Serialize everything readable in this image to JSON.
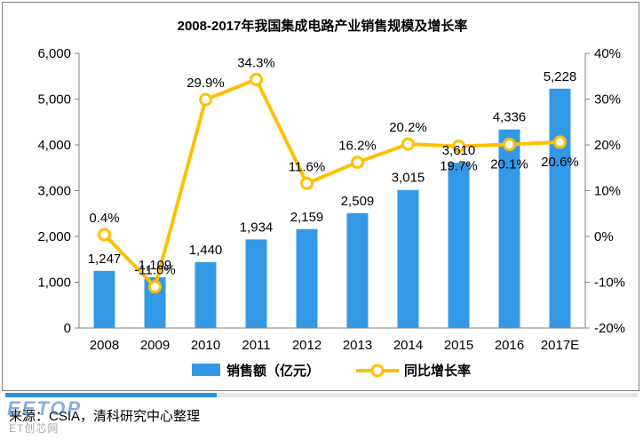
{
  "chart_data": {
    "type": "bar",
    "title": "2008-2017年我国集成电路产业销售规模及增长率",
    "categories": [
      "2008",
      "2009",
      "2010",
      "2011",
      "2012",
      "2013",
      "2014",
      "2015",
      "2016",
      "2017E"
    ],
    "bar_labels": [
      "1,247",
      "1,109",
      "1,440",
      "1,934",
      "2,159",
      "2,509",
      "3,015",
      "3,610",
      "4,336",
      "5,228"
    ],
    "line_labels": [
      "0.4%",
      "-11.0%",
      "29.9%",
      "34.3%",
      "11.6%",
      "16.2%",
      "20.2%",
      "19.7%",
      "20.1%",
      "20.6%"
    ],
    "series": [
      {
        "name": "销售额（亿元）",
        "type": "bar",
        "axis": "left",
        "color": "#3399e6",
        "values": [
          1247,
          1109,
          1440,
          1934,
          2159,
          2509,
          3015,
          3610,
          4336,
          5228
        ]
      },
      {
        "name": "同比增长率",
        "type": "line",
        "axis": "right",
        "color": "#ffc000",
        "values": [
          0.4,
          -11.0,
          29.9,
          34.3,
          11.6,
          16.2,
          20.2,
          19.7,
          20.1,
          20.6
        ]
      }
    ],
    "ylim_left": [
      0,
      6000
    ],
    "yticks_left": [
      "0",
      "1,000",
      "2,000",
      "3,000",
      "4,000",
      "5,000",
      "6,000"
    ],
    "ylim_right": [
      -20,
      40
    ],
    "yticks_right": [
      "-20%",
      "-10%",
      "0%",
      "10%",
      "20%",
      "30%",
      "40%"
    ],
    "grid": false,
    "legend_position": "bottom"
  },
  "footer": {
    "source": "来源：CSIA，清科研究中心整理",
    "accent_color": "#2e8fd6"
  },
  "watermark": {
    "top_text": "EETOP",
    "bottom_text": "ET创芯网"
  }
}
